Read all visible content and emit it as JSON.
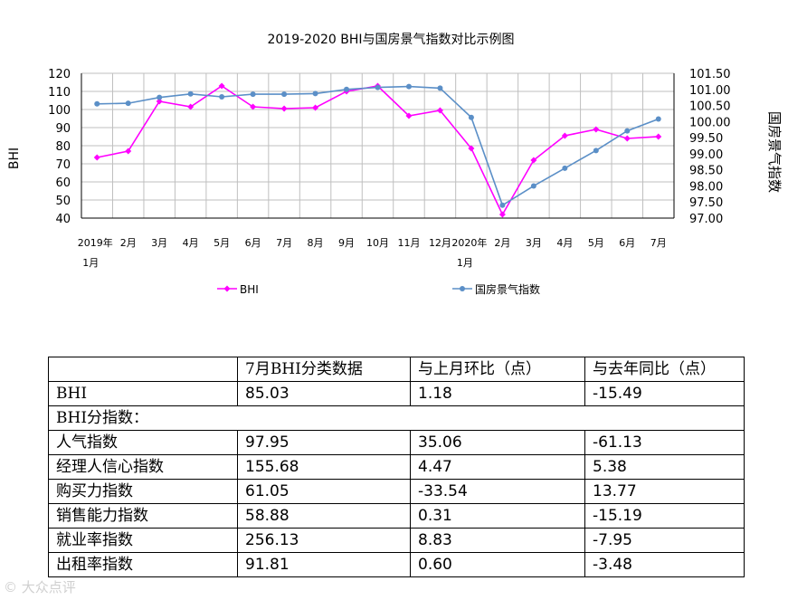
{
  "chart_data": {
    "type": "line",
    "title": "2019-2020 BHI与国房景气指数对比示例图",
    "ylabel": "BHI",
    "y2label": "国房景气指数",
    "ylim": [
      40,
      120
    ],
    "y2lim": [
      97.0,
      101.5
    ],
    "yticks": [
      "40",
      "50",
      "60",
      "70",
      "80",
      "90",
      "100",
      "110",
      "120"
    ],
    "y2ticks": [
      "97.00",
      "97.50",
      "98.00",
      "98.50",
      "99.00",
      "99.50",
      "100.00",
      "100.50",
      "101.00",
      "101.50"
    ],
    "categories": [
      [
        "2019年",
        "1月"
      ],
      [
        "2月"
      ],
      [
        "3月"
      ],
      [
        "4月"
      ],
      [
        "5月"
      ],
      [
        "6月"
      ],
      [
        "7月"
      ],
      [
        "8月"
      ],
      [
        "9月"
      ],
      [
        "10月"
      ],
      [
        "11月"
      ],
      [
        "12月"
      ],
      [
        "2020年",
        "1月"
      ],
      [
        "2月"
      ],
      [
        "3月"
      ],
      [
        "4月"
      ],
      [
        "5月"
      ],
      [
        "6月"
      ],
      [
        "7月"
      ]
    ],
    "legend_position": "bottom",
    "series": [
      {
        "name": "BHI",
        "axis": "left",
        "color": "#ff00ff",
        "values": [
          73.5,
          77,
          104.5,
          101.5,
          113,
          101.5,
          100.5,
          101,
          110,
          113,
          96.5,
          99.5,
          78.5,
          42,
          72,
          85.5,
          89,
          84,
          85.03
        ]
      },
      {
        "name": "国房景气指数",
        "axis": "right",
        "color": "#5b8fc7",
        "values": [
          100.55,
          100.57,
          100.75,
          100.86,
          100.77,
          100.85,
          100.85,
          100.87,
          101.0,
          101.06,
          101.09,
          101.04,
          100.13,
          97.4,
          98.0,
          98.55,
          99.1,
          99.71,
          100.08
        ]
      }
    ]
  },
  "table": {
    "header": [
      "",
      "7月BHI分类数据",
      "与上月环比（点）",
      "与去年同比（点）"
    ],
    "section_label": "BHI分指数：",
    "rows_top": [
      [
        "BHI",
        "85.03",
        "1.18",
        "-15.49"
      ]
    ],
    "rows": [
      [
        "人气指数",
        "97.95",
        "35.06",
        "-61.13"
      ],
      [
        "经理人信心指数",
        "155.68",
        "4.47",
        "5.38"
      ],
      [
        "购买力指数",
        "61.05",
        "-33.54",
        "13.77"
      ],
      [
        "销售能力指数",
        "58.88",
        "0.31",
        "-15.19"
      ],
      [
        "就业率指数",
        "256.13",
        "8.83",
        "-7.95"
      ],
      [
        "出租率指数",
        "91.81",
        "0.60",
        "-3.48"
      ]
    ]
  },
  "watermark": "© 大众点评"
}
